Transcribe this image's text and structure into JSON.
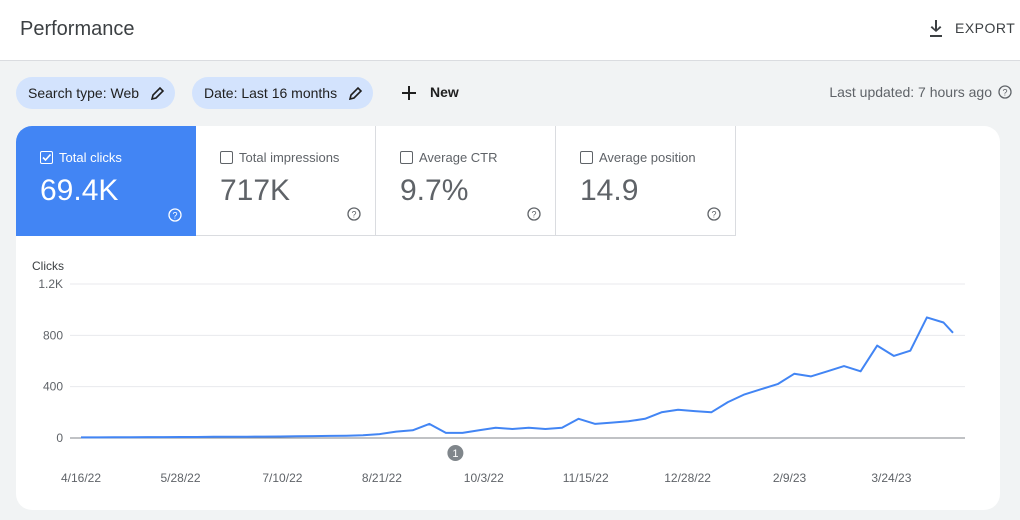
{
  "header": {
    "title": "Performance",
    "export": "EXPORT"
  },
  "filters": {
    "chips": [
      "Search type: Web",
      "Date: Last 16 months"
    ],
    "new": "New",
    "last_updated": "Last updated: 7 hours ago"
  },
  "metrics": [
    {
      "label": "Total clicks",
      "value": "69.4K",
      "selected": true
    },
    {
      "label": "Total impressions",
      "value": "717K",
      "selected": false
    },
    {
      "label": "Average CTR",
      "value": "9.7%",
      "selected": false
    },
    {
      "label": "Average position",
      "value": "14.9",
      "selected": false
    }
  ],
  "chart_data": {
    "type": "line",
    "y_label": "Clicks",
    "color": "#4285f4",
    "grid": true,
    "x": [
      "4/16/22",
      "4/23/22",
      "4/30/22",
      "5/7/22",
      "5/14/22",
      "5/21/22",
      "5/28/22",
      "6/4/22",
      "6/11/22",
      "6/18/22",
      "6/25/22",
      "7/2/22",
      "7/9/22",
      "7/16/22",
      "7/23/22",
      "7/30/22",
      "8/6/22",
      "8/13/22",
      "8/20/22",
      "8/27/22",
      "9/3/22",
      "9/10/22",
      "9/17/22",
      "9/24/22",
      "10/1/22",
      "10/8/22",
      "10/15/22",
      "10/22/22",
      "10/29/22",
      "11/5/22",
      "11/12/22",
      "11/19/22",
      "11/26/22",
      "12/3/22",
      "12/10/22",
      "12/17/22",
      "12/24/22",
      "12/31/22",
      "1/7/23",
      "1/14/23",
      "1/21/23",
      "1/28/23",
      "2/4/23",
      "2/11/23",
      "2/18/23",
      "2/25/23",
      "3/4/23",
      "3/11/23",
      "3/18/23",
      "3/25/23",
      "4/1/23",
      "4/8/23",
      "4/15/23",
      "4/19/23"
    ],
    "values": [
      5,
      5,
      6,
      6,
      7,
      7,
      8,
      8,
      9,
      10,
      10,
      11,
      12,
      14,
      15,
      16,
      18,
      22,
      30,
      50,
      60,
      110,
      40,
      40,
      60,
      80,
      70,
      80,
      70,
      80,
      150,
      110,
      120,
      130,
      150,
      200,
      220,
      210,
      200,
      280,
      340,
      380,
      420,
      500,
      480,
      520,
      560,
      520,
      720,
      640,
      680,
      940,
      900,
      820
    ],
    "xlim": [
      "4/16/22",
      "4/19/23"
    ],
    "xticks": [
      "4/16/22",
      "5/28/22",
      "7/10/22",
      "8/21/22",
      "10/3/22",
      "11/15/22",
      "12/28/22",
      "2/9/23",
      "3/24/23"
    ],
    "ylim": [
      0,
      1200
    ],
    "yticks": [
      0,
      400,
      800,
      {
        "value": 1200,
        "label": "1.2K"
      }
    ],
    "annotations": [
      {
        "label": "1",
        "x": "9/21/22"
      }
    ]
  }
}
